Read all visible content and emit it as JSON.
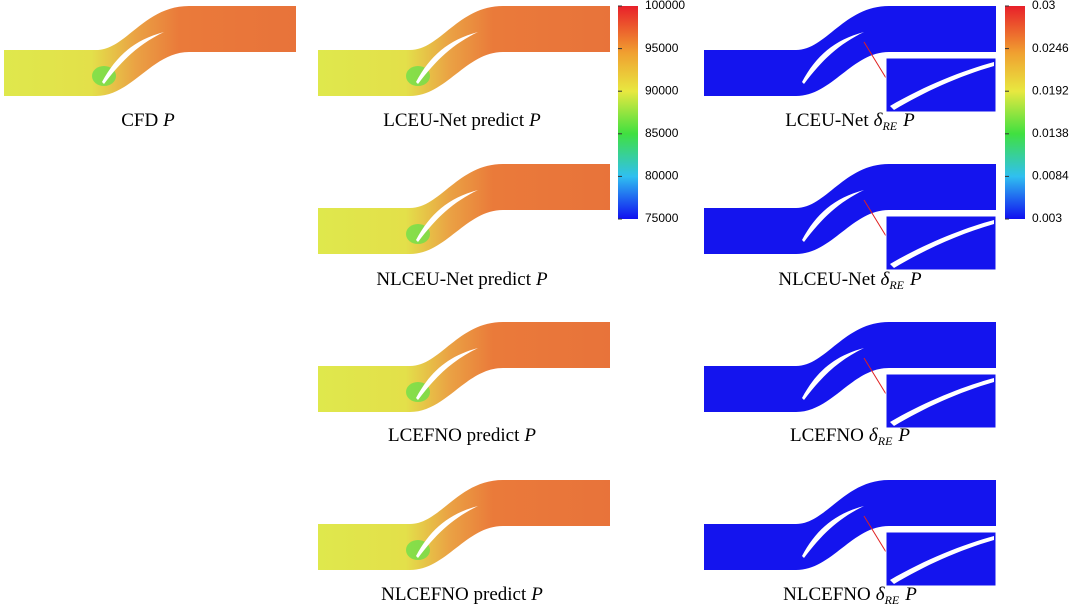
{
  "panels": [
    {
      "kind": "pressure",
      "caption": {
        "text": "CFD",
        "var": "P"
      }
    },
    {
      "kind": "pressure",
      "caption": {
        "text": "LCEU-Net predict",
        "var": "P"
      }
    },
    {
      "kind": "pressure",
      "caption": {
        "text": "NLCEU-Net predict",
        "var": "P"
      }
    },
    {
      "kind": "pressure",
      "caption": {
        "text": "LCEFNO predict",
        "var": "P"
      }
    },
    {
      "kind": "pressure",
      "caption": {
        "text": "NLCEFNO predict",
        "var": "P"
      }
    },
    {
      "kind": "error",
      "caption": {
        "text": "LCEU-Net",
        "symbol": "δ",
        "sub": "RE",
        "var": "P"
      }
    },
    {
      "kind": "error",
      "caption": {
        "text": "NLCEU-Net",
        "symbol": "δ",
        "sub": "RE",
        "var": "P"
      }
    },
    {
      "kind": "error",
      "caption": {
        "text": "LCEFNO",
        "symbol": "δ",
        "sub": "RE",
        "var": "P"
      }
    },
    {
      "kind": "error",
      "caption": {
        "text": "NLCEFNO",
        "symbol": "δ",
        "sub": "RE",
        "var": "P"
      }
    }
  ],
  "colorbars": [
    {
      "ticks": [
        100000,
        95000,
        90000,
        85000,
        80000,
        75000
      ]
    },
    {
      "ticks": [
        0.03,
        0.0246,
        0.0192,
        0.0138,
        0.0084,
        0.003
      ]
    }
  ]
}
